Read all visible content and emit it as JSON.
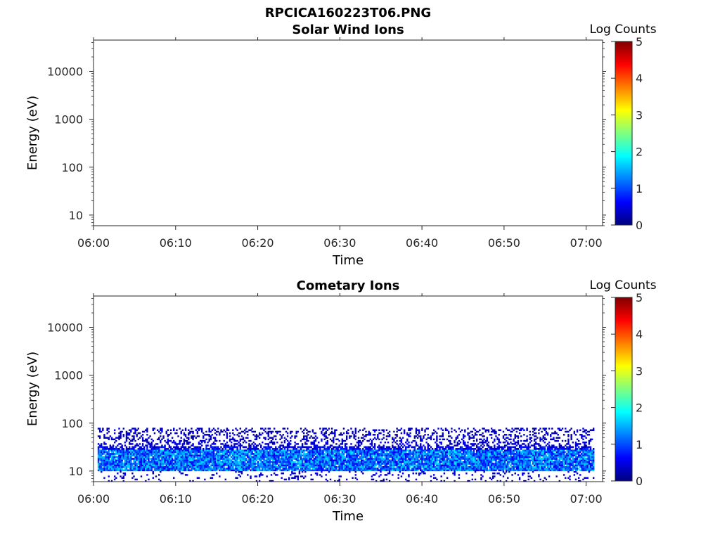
{
  "figure": {
    "title": "RPCICA160223T06.PNG",
    "background": "#ffffff"
  },
  "colormap": {
    "name": "jet",
    "stops": [
      "#00007f",
      "#0000ff",
      "#007fff",
      "#00ffff",
      "#7fff7f",
      "#ffff00",
      "#ff7f00",
      "#ff0000",
      "#7f0000"
    ]
  },
  "chart_data": [
    {
      "type": "heatmap",
      "title": "Solar Wind Ions",
      "xlabel": "Time",
      "ylabel": "Energy (eV)",
      "x_ticks": [
        "06:00",
        "06:10",
        "06:20",
        "06:30",
        "06:40",
        "06:50",
        "07:00"
      ],
      "xlim_minutes": [
        0,
        62
      ],
      "y_scale": "log",
      "ylim": [
        6,
        45000
      ],
      "y_ticks": [
        10,
        100,
        1000,
        10000
      ],
      "y_tick_labels": [
        "10",
        "100",
        "1000",
        "10000"
      ],
      "colorbar": {
        "label": "Log Counts",
        "range": [
          0,
          5
        ],
        "ticks": [
          "0",
          "1",
          "2",
          "3",
          "4",
          "5"
        ]
      },
      "bands": []
    },
    {
      "type": "heatmap",
      "title": "Cometary Ions",
      "xlabel": "Time",
      "ylabel": "Energy (eV)",
      "x_ticks": [
        "06:00",
        "06:10",
        "06:20",
        "06:30",
        "06:40",
        "06:50",
        "07:00"
      ],
      "xlim_minutes": [
        0,
        62
      ],
      "y_scale": "log",
      "ylim": [
        6,
        45000
      ],
      "y_ticks": [
        10,
        100,
        1000,
        10000
      ],
      "y_tick_labels": [
        "10",
        "100",
        "1000",
        "10000"
      ],
      "colorbar": {
        "label": "Log Counts",
        "range": [
          0,
          5
        ],
        "ticks": [
          "0",
          "1",
          "2",
          "3",
          "4",
          "5"
        ]
      },
      "time_range_minutes": [
        0.5,
        60.8
      ],
      "bands": [
        {
          "energy_range_eV": [
            10,
            28
          ],
          "log_counts_range": [
            0.5,
            1.8
          ],
          "fill_probability": 0.95
        },
        {
          "energy_range_eV": [
            28,
            33
          ],
          "log_counts_range": [
            0.2,
            0.9
          ],
          "fill_probability": 0.7
        },
        {
          "energy_range_eV": [
            33,
            80
          ],
          "log_counts_range": [
            0.1,
            0.6
          ],
          "fill_probability": 0.3
        },
        {
          "energy_range_eV": [
            6,
            10
          ],
          "log_counts_range": [
            0.1,
            0.6
          ],
          "fill_probability": 0.12
        }
      ]
    }
  ]
}
